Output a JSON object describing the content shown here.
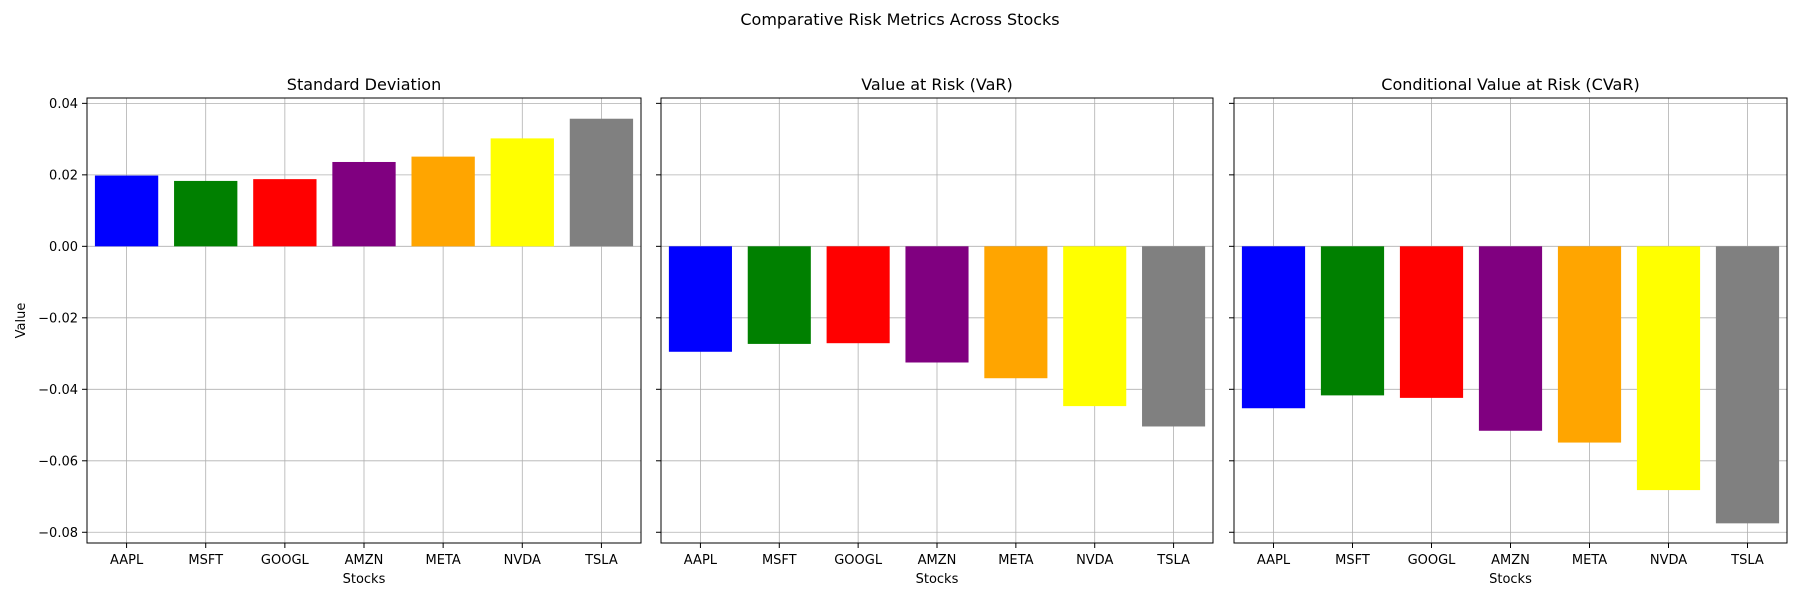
{
  "suptitle": "Comparative Risk Metrics Across Stocks",
  "colors": {
    "AAPL": "#0000ff",
    "MSFT": "#008000",
    "GOOGL": "#ff0000",
    "AMZN": "#800080",
    "META": "#ffa500",
    "NVDA": "#ffff00",
    "TSLA": "#808080"
  },
  "chart_data": [
    {
      "type": "bar",
      "title": "Standard Deviation",
      "xlabel": "Stocks",
      "ylabel": "Value",
      "categories": [
        "AAPL",
        "MSFT",
        "GOOGL",
        "AMZN",
        "META",
        "NVDA",
        "TSLA"
      ],
      "values": [
        0.0198,
        0.0183,
        0.0188,
        0.0236,
        0.0251,
        0.0302,
        0.0357
      ],
      "ylim": [
        -0.083,
        0.0415
      ],
      "yticks": [
        0.04,
        0.02,
        0.0,
        -0.02,
        -0.04,
        -0.06,
        -0.08
      ],
      "ytick_labels": [
        "0.04",
        "0.02",
        "0.00",
        "−0.02",
        "−0.04",
        "−0.06",
        "−0.08"
      ],
      "grid": true
    },
    {
      "type": "bar",
      "title": "Value at Risk (VaR)",
      "xlabel": "Stocks",
      "ylabel": "",
      "categories": [
        "AAPL",
        "MSFT",
        "GOOGL",
        "AMZN",
        "META",
        "NVDA",
        "TSLA"
      ],
      "values": [
        -0.0295,
        -0.0273,
        -0.0271,
        -0.0325,
        -0.0369,
        -0.0447,
        -0.0504
      ],
      "ylim": [
        -0.083,
        0.0415
      ],
      "grid": true
    },
    {
      "type": "bar",
      "title": "Conditional Value at Risk (CVaR)",
      "xlabel": "Stocks",
      "ylabel": "",
      "categories": [
        "AAPL",
        "MSFT",
        "GOOGL",
        "AMZN",
        "META",
        "NVDA",
        "TSLA"
      ],
      "values": [
        -0.0453,
        -0.0417,
        -0.0424,
        -0.0516,
        -0.0549,
        -0.0682,
        -0.0775
      ],
      "ylim": [
        -0.083,
        0.0415
      ],
      "grid": true
    }
  ]
}
